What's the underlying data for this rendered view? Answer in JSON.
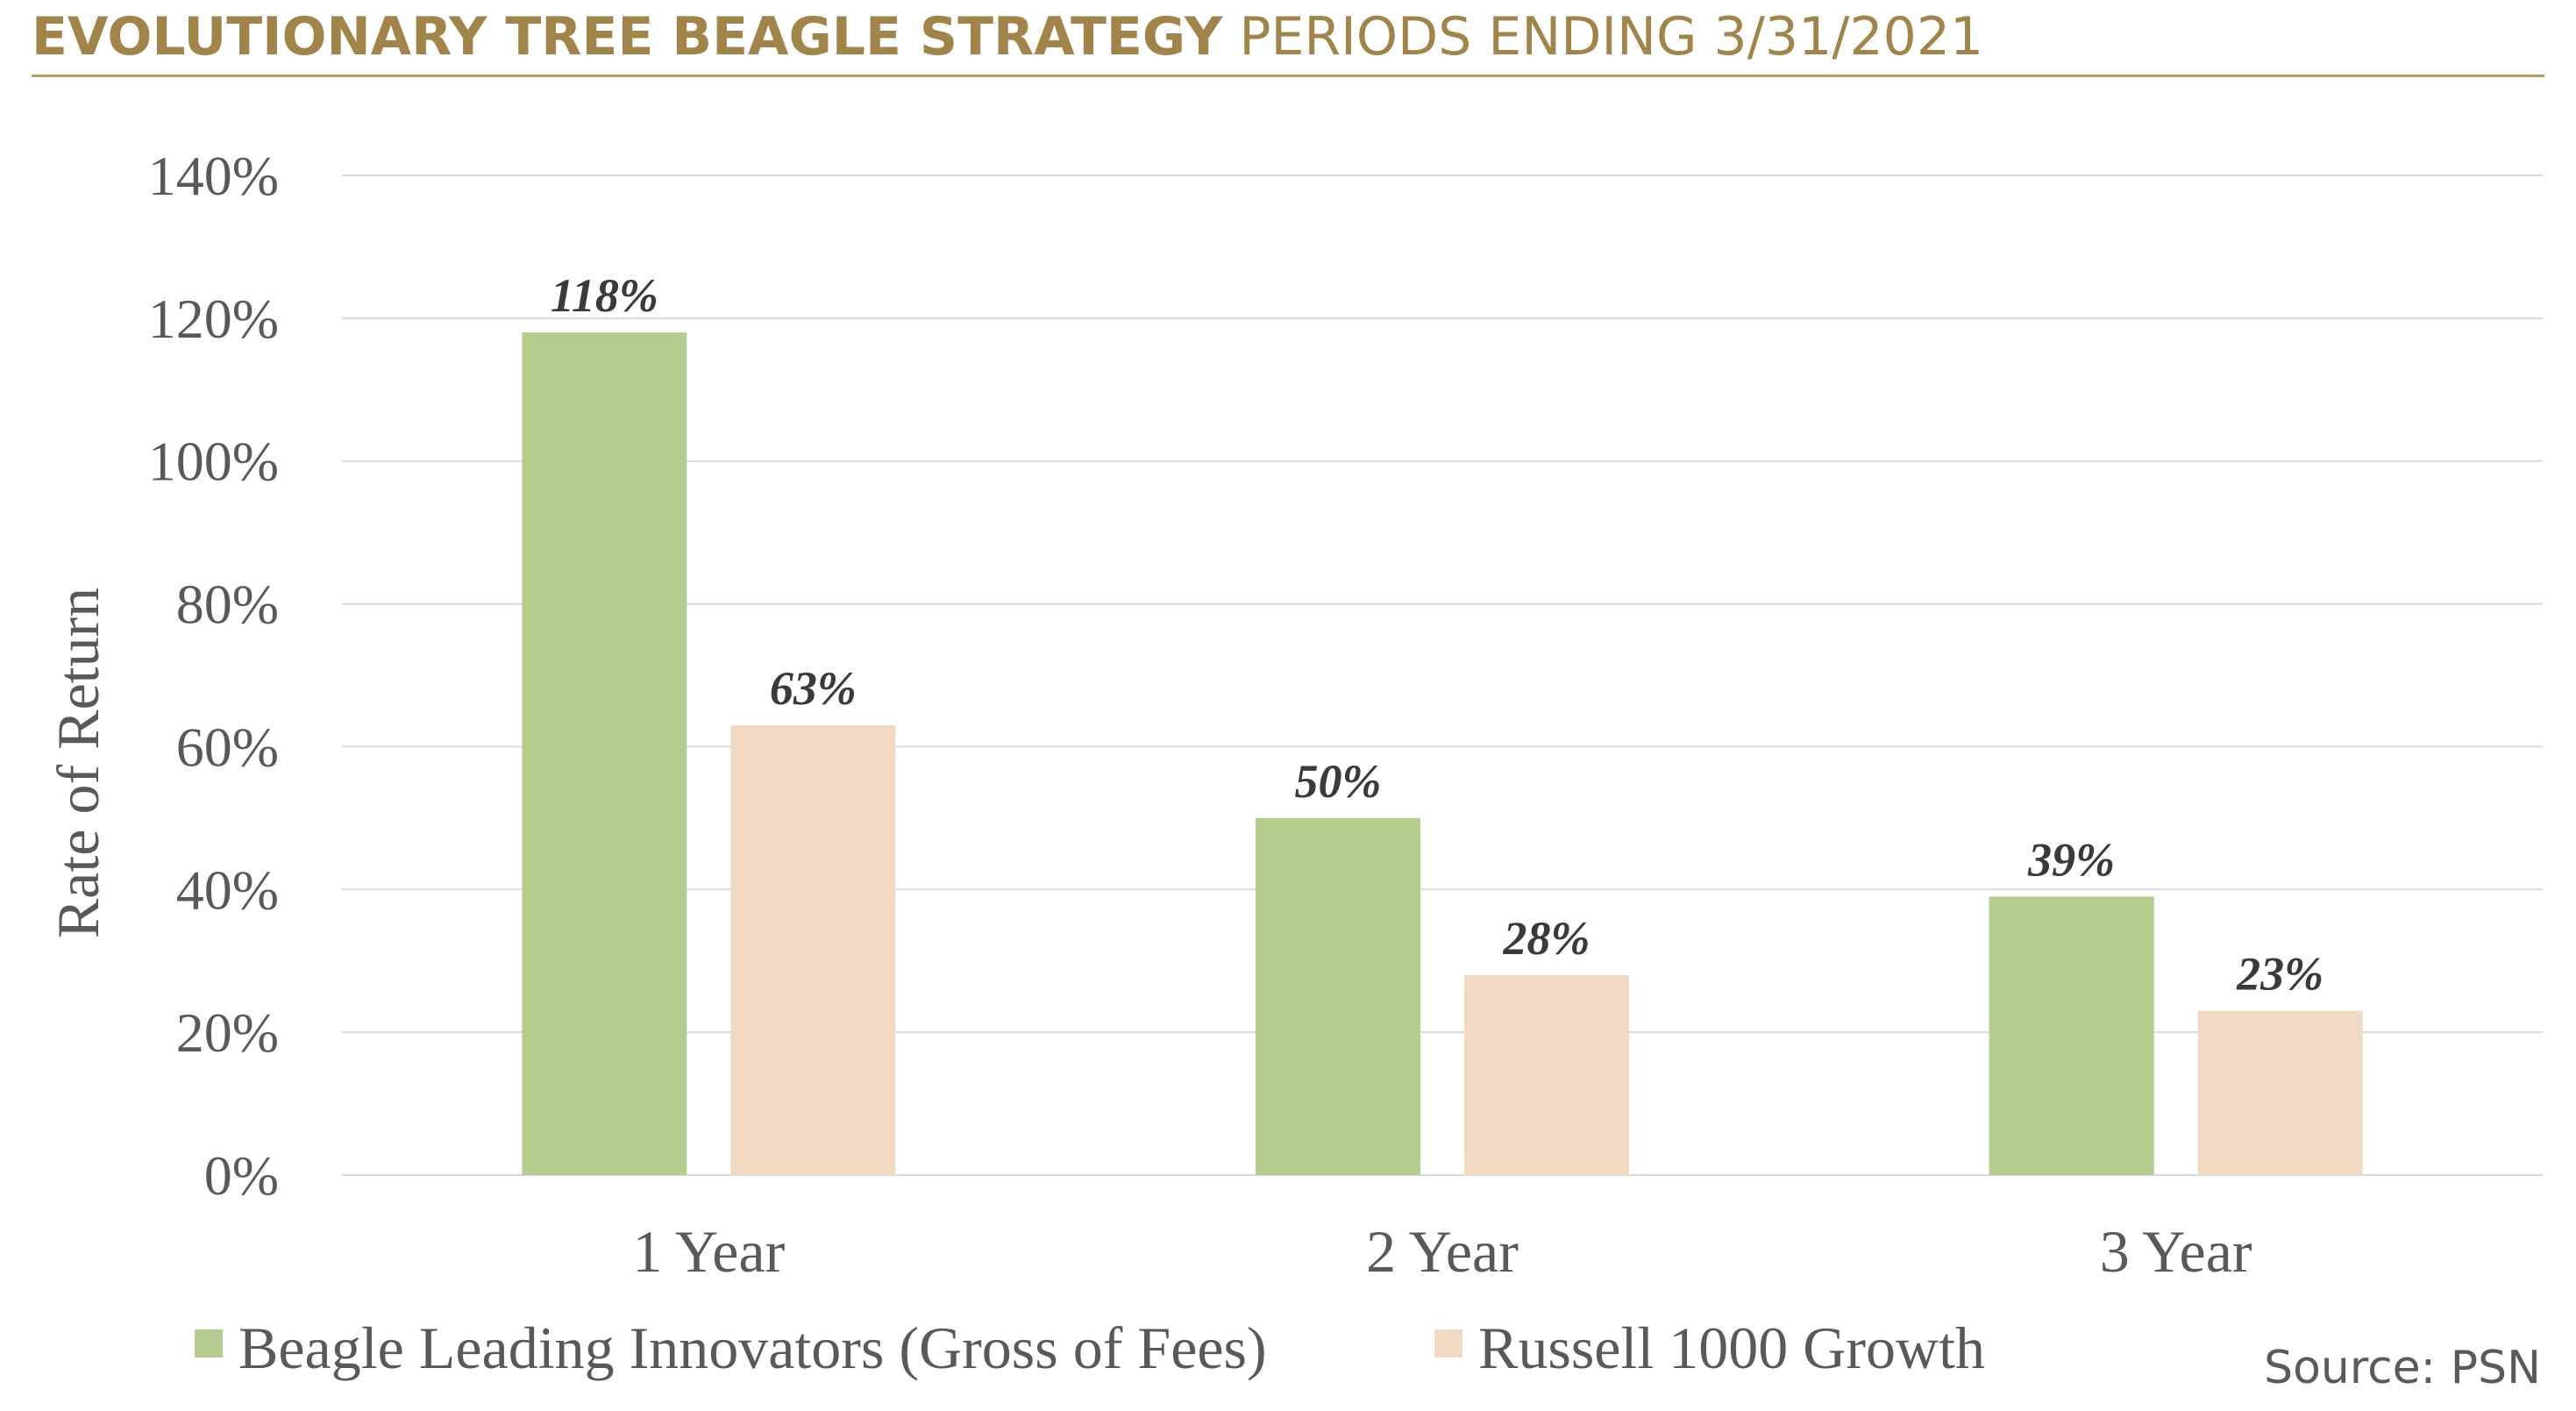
{
  "header": {
    "title_main": "EVOLUTIONARY TREE BEAGLE STRATEGY",
    "title_sub": "PERIODS ENDING 3/31/2021"
  },
  "source": "Source: PSN",
  "colors": {
    "title": "#A0844A",
    "series_1": "#B4CC8E",
    "series_2": "#F2D9C3",
    "grid": "#D9D9D9",
    "text": "#595959"
  },
  "chart_data": {
    "type": "bar",
    "categories": [
      "1 Year",
      "2 Year",
      "3 Year"
    ],
    "series": [
      {
        "name": "Beagle Leading Innovators (Gross of Fees)",
        "values": [
          118,
          50,
          39
        ],
        "labels": [
          "118%",
          "50%",
          "39%"
        ]
      },
      {
        "name": "Russell 1000 Growth",
        "values": [
          63,
          28,
          23
        ],
        "labels": [
          "63%",
          "28%",
          "23%"
        ]
      }
    ],
    "ylabel": "Rate of Return",
    "ylim": [
      0,
      140
    ],
    "yticks": [
      0,
      20,
      40,
      60,
      80,
      100,
      120,
      140
    ],
    "ytick_labels": [
      "0%",
      "20%",
      "40%",
      "60%",
      "80%",
      "100%",
      "120%",
      "140%"
    ],
    "grid": true,
    "legend": "bottom"
  }
}
